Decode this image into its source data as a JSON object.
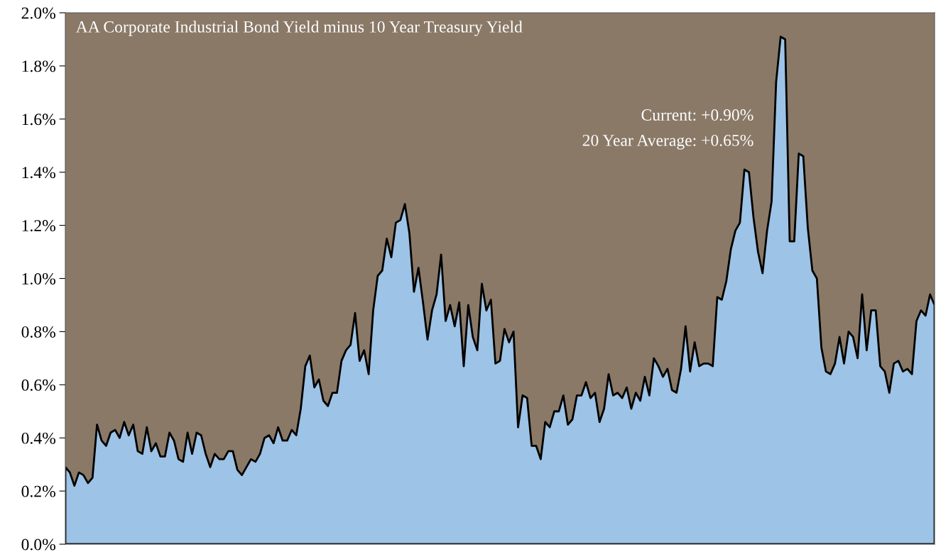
{
  "chart_data": {
    "type": "area",
    "title": "AA Corporate Industrial Bond Yield minus 10 Year Treasury Yield",
    "annotations": [
      "Current: +0.90%",
      "20 Year Average: +0.65%"
    ],
    "categories": [
      null,
      null,
      null,
      null,
      null,
      null,
      null,
      null,
      null,
      null,
      null,
      null,
      null,
      null,
      null,
      null,
      null,
      null,
      null,
      null,
      null,
      null,
      null,
      null,
      null,
      null,
      null,
      null,
      null,
      null,
      null,
      null,
      null,
      null,
      null,
      null,
      null,
      null,
      null,
      null,
      null,
      null,
      null,
      null,
      null,
      null,
      null,
      null,
      null,
      null,
      null,
      null,
      null,
      null,
      null,
      null,
      null,
      null,
      null,
      null,
      null,
      null,
      null,
      null,
      null,
      null,
      null,
      null,
      null,
      null,
      null,
      null,
      null,
      null,
      null,
      null,
      null,
      null,
      null,
      null,
      null,
      null,
      null,
      null,
      null,
      null,
      null,
      null,
      null,
      null,
      null,
      null,
      null,
      null,
      null,
      null,
      null,
      null,
      null,
      null,
      null,
      null,
      null,
      null,
      null,
      null,
      null,
      null,
      null,
      null,
      null,
      null,
      null,
      null,
      null,
      null,
      null,
      null,
      null,
      null,
      null,
      null,
      null,
      null,
      null,
      null,
      null,
      null,
      null,
      null,
      null,
      null,
      null,
      null,
      null,
      null,
      null,
      null,
      null,
      null,
      null,
      null,
      null,
      null,
      null,
      null,
      null,
      null,
      null,
      null,
      null,
      null,
      null,
      null,
      null,
      null,
      null,
      null,
      null,
      null,
      null,
      null,
      null,
      null,
      null,
      null,
      null,
      null,
      null,
      null,
      null,
      null,
      null,
      null,
      null,
      null,
      null,
      null,
      null,
      null,
      null,
      null,
      null,
      null,
      null,
      null,
      null,
      null,
      null,
      null,
      null,
      null,
      null
    ],
    "series": [
      {
        "color": "#9dc3e6",
        "values": [
          0.29,
          0.27,
          0.22,
          0.27,
          0.26,
          0.23,
          0.25,
          0.45,
          0.39,
          0.37,
          0.42,
          0.43,
          0.4,
          0.46,
          0.41,
          0.45,
          0.35,
          0.34,
          0.44,
          0.35,
          0.38,
          0.33,
          0.33,
          0.42,
          0.39,
          0.32,
          0.31,
          0.42,
          0.34,
          0.42,
          0.41,
          0.34,
          0.29,
          0.34,
          0.32,
          0.32,
          0.35,
          0.35,
          0.28,
          0.26,
          0.29,
          0.32,
          0.31,
          0.34,
          0.4,
          0.41,
          0.38,
          0.44,
          0.39,
          0.39,
          0.43,
          0.41,
          0.51,
          0.67,
          0.71,
          0.59,
          0.62,
          0.54,
          0.52,
          0.57,
          0.57,
          0.69,
          0.73,
          0.75,
          0.87,
          0.69,
          0.73,
          0.64,
          0.88,
          1.01,
          1.03,
          1.15,
          1.08,
          1.21,
          1.22,
          1.28,
          1.17,
          0.95,
          1.04,
          0.91,
          0.77,
          0.88,
          0.94,
          1.09,
          0.84,
          0.9,
          0.82,
          0.91,
          0.67,
          0.9,
          0.78,
          0.73,
          0.98,
          0.88,
          0.92,
          0.68,
          0.69,
          0.81,
          0.76,
          0.8,
          0.44,
          0.56,
          0.55,
          0.37,
          0.37,
          0.32,
          0.46,
          0.44,
          0.5,
          0.5,
          0.56,
          0.45,
          0.47,
          0.56,
          0.56,
          0.61,
          0.55,
          0.57,
          0.46,
          0.51,
          0.64,
          0.56,
          0.57,
          0.55,
          0.59,
          0.51,
          0.57,
          0.54,
          0.63,
          0.56,
          0.7,
          0.67,
          0.63,
          0.66,
          0.58,
          0.57,
          0.66,
          0.82,
          0.65,
          0.76,
          0.67,
          0.68,
          0.68,
          0.67,
          0.93,
          0.92,
          0.99,
          1.11,
          1.18,
          1.21,
          1.41,
          1.4,
          1.23,
          1.1,
          1.02,
          1.18,
          1.29,
          1.74,
          1.91,
          1.9,
          1.14,
          1.14,
          1.47,
          1.46,
          1.19,
          1.03,
          1.0,
          0.74,
          0.65,
          0.64,
          0.68,
          0.78,
          0.68,
          0.8,
          0.78,
          0.7,
          0.94,
          0.73,
          0.88,
          0.88,
          0.67,
          0.65,
          0.57,
          0.68,
          0.69,
          0.65,
          0.66,
          0.64,
          0.84,
          0.88,
          0.86,
          0.94,
          0.9
        ]
      }
    ],
    "ylim": [
      0,
      2.0
    ],
    "yticks": [
      {
        "value": 0,
        "label": "0.0%"
      },
      {
        "value": 0.2,
        "label": "0.2%"
      },
      {
        "value": 0.4,
        "label": "0.4%"
      },
      {
        "value": 0.6,
        "label": "0.6%"
      },
      {
        "value": 0.8,
        "label": "0.8%"
      },
      {
        "value": 1.0,
        "label": "1.0%"
      },
      {
        "value": 1.2,
        "label": "1.2%"
      },
      {
        "value": 1.4,
        "label": "1.4%"
      },
      {
        "value": 1.6,
        "label": "1.6%"
      },
      {
        "value": 1.8,
        "label": "1.8%"
      },
      {
        "value": 2.0,
        "label": "2.0%"
      }
    ],
    "grid": false,
    "legend": false
  }
}
